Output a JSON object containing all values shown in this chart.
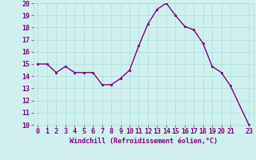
{
  "x": [
    0,
    1,
    2,
    3,
    4,
    5,
    6,
    7,
    8,
    9,
    10,
    11,
    12,
    13,
    14,
    15,
    16,
    17,
    18,
    19,
    20,
    21,
    23
  ],
  "y": [
    15,
    15,
    14.3,
    14.8,
    14.3,
    14.3,
    14.3,
    13.3,
    13.3,
    13.8,
    14.5,
    16.5,
    18.3,
    19.5,
    20,
    19,
    18.1,
    17.8,
    16.7,
    14.8,
    14.3,
    13.2,
    10
  ],
  "line_color": "#800080",
  "marker_color": "#800080",
  "bg_color": "#cff0ee",
  "grid_color": "#aaddda",
  "xlabel": "Windchill (Refroidissement éolien,°C)",
  "ylim": [
    10,
    20
  ],
  "xlim": [
    -0.5,
    23.5
  ],
  "yticks": [
    10,
    11,
    12,
    13,
    14,
    15,
    16,
    17,
    18,
    19,
    20
  ],
  "xticks": [
    0,
    1,
    2,
    3,
    4,
    5,
    6,
    7,
    8,
    9,
    10,
    11,
    12,
    13,
    14,
    15,
    16,
    17,
    18,
    19,
    20,
    21,
    23
  ],
  "xtick_labels": [
    "0",
    "1",
    "2",
    "3",
    "4",
    "5",
    "6",
    "7",
    "8",
    "9",
    "10",
    "11",
    "12",
    "13",
    "14",
    "15",
    "16",
    "17",
    "18",
    "19",
    "20",
    "21",
    "23"
  ],
  "xlabel_fontsize": 6,
  "tick_fontsize": 6,
  "line_width": 1.0,
  "marker_size": 2.5
}
